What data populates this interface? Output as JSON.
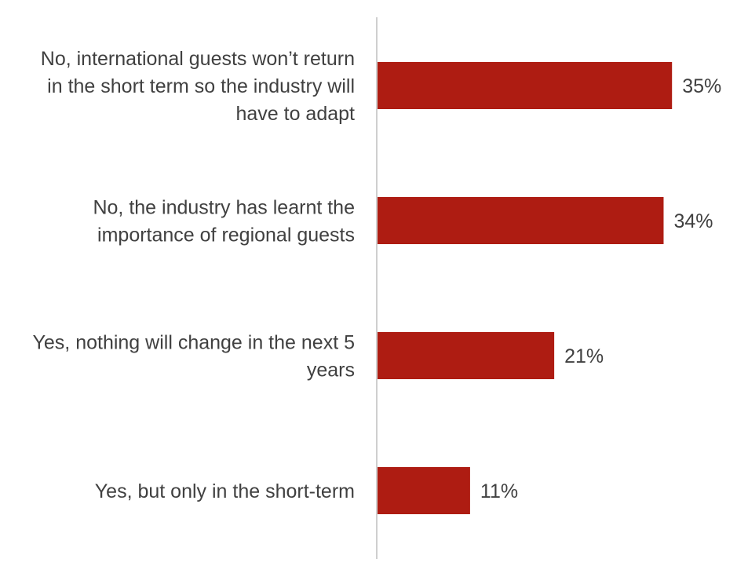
{
  "chart_data": {
    "type": "bar",
    "orientation": "horizontal",
    "title": "",
    "xlabel": "",
    "ylabel": "",
    "categories": [
      "No, international guests won’t return in the short term so the industry will have to adapt",
      "No, the industry has learnt the importance of regional guests",
      "Yes, nothing will change in the next 5 years",
      "Yes, but only in the short-term"
    ],
    "category_lines": [
      [
        "No, international guests won’t return",
        "in the short term so the industry will",
        "have to adapt"
      ],
      [
        "No, the industry has learnt the",
        "importance of regional guests"
      ],
      [
        "Yes, nothing will change in the next 5",
        "years"
      ],
      [
        "Yes, but only in the short-term"
      ]
    ],
    "values": [
      35,
      34,
      21,
      11
    ],
    "value_labels": [
      "35%",
      "34%",
      "21%",
      "11%"
    ],
    "xlim": [
      0,
      40
    ],
    "grid": false,
    "legend": "none",
    "bar_color": "#AE1C12",
    "axis_color": "#BFBFBF",
    "text_color": "#404040"
  }
}
